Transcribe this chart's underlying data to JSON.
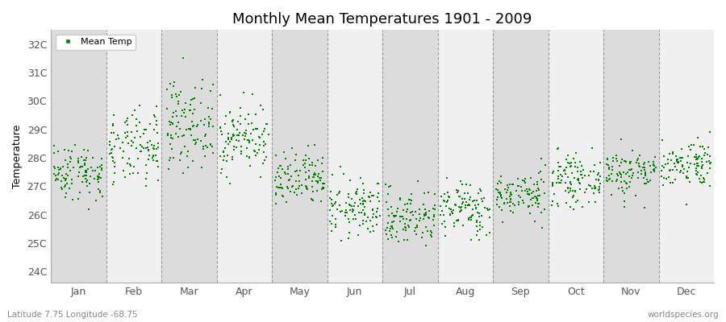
{
  "title": "Monthly Mean Temperatures 1901 - 2009",
  "ylabel": "Temperature",
  "month_labels": [
    "Jan",
    "Feb",
    "Mar",
    "Apr",
    "May",
    "Jun",
    "Jul",
    "Aug",
    "Sep",
    "Oct",
    "Nov",
    "Dec"
  ],
  "ytick_labels": [
    "24C",
    "25C",
    "26C",
    "27C",
    "28C",
    "29C",
    "30C",
    "31C",
    "32C"
  ],
  "ytick_values": [
    24,
    25,
    26,
    27,
    28,
    29,
    30,
    31,
    32
  ],
  "ylim": [
    23.6,
    32.5
  ],
  "xlim": [
    0,
    12
  ],
  "dot_color": "#008000",
  "bg_color_dark": "#DCDCDC",
  "bg_color_light": "#F0F0F0",
  "plot_bg": "#F0F0F0",
  "footer_left": "Latitude 7.75 Longitude -68.75",
  "footer_right": "worldspecies.org",
  "legend_label": "Mean Temp",
  "years": 109,
  "seed": 42,
  "monthly_means": [
    27.5,
    28.3,
    29.2,
    28.7,
    27.2,
    26.2,
    25.9,
    26.2,
    26.7,
    27.2,
    27.5,
    27.8
  ],
  "monthly_stds": [
    0.5,
    0.65,
    0.75,
    0.6,
    0.5,
    0.5,
    0.5,
    0.48,
    0.4,
    0.42,
    0.42,
    0.42
  ],
  "dot_size": 3.5,
  "title_fontsize": 13,
  "axis_label_fontsize": 9,
  "ylabel_fontsize": 9,
  "legend_fontsize": 8,
  "footer_fontsize": 7.5
}
